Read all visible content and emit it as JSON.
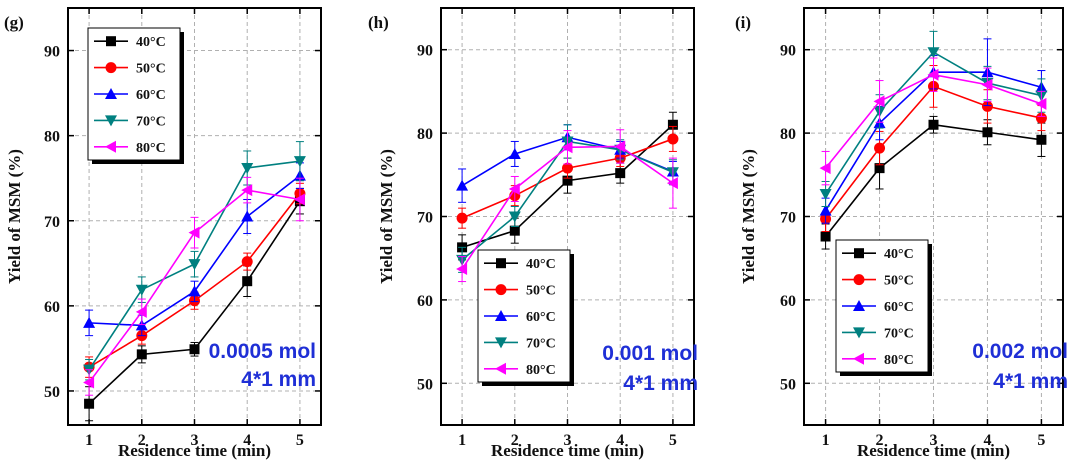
{
  "chart_data": [
    {
      "type": "line",
      "panel": "(g)",
      "xlabel": "Residence time (min)",
      "ylabel": "Yield of MSM (%)",
      "x": [
        1,
        2,
        3,
        4,
        5
      ],
      "xticks": [
        "1",
        "2",
        "3",
        "4",
        "5"
      ],
      "yticks": [
        "50",
        "60",
        "70",
        "80",
        "90"
      ],
      "xlim": [
        0.6,
        5.4
      ],
      "ylim": [
        46,
        95
      ],
      "legend_position": "top-left",
      "annotation": [
        "0.0005 mol",
        "4*1 mm"
      ],
      "series": [
        {
          "name": "40°C",
          "color": "#000000",
          "marker": "square",
          "values": [
            48.5,
            54.3,
            54.9,
            62.9,
            72.3
          ],
          "errors": [
            2.0,
            1.0,
            0.8,
            1.8,
            1.5
          ]
        },
        {
          "name": "50°C",
          "color": "#ff0000",
          "marker": "circle",
          "values": [
            52.8,
            56.5,
            60.6,
            65.2,
            73.2
          ],
          "errors": [
            1.2,
            1.0,
            1.0,
            1.0,
            1.2
          ]
        },
        {
          "name": "60°C",
          "color": "#0000ff",
          "marker": "triangle-up",
          "values": [
            58.0,
            57.7,
            61.7,
            70.5,
            75.3
          ],
          "errors": [
            1.5,
            1.2,
            1.2,
            2.0,
            1.5
          ]
        },
        {
          "name": "70°C",
          "color": "#008080",
          "marker": "triangle-down",
          "values": [
            52.5,
            61.9,
            64.9,
            76.2,
            77.0
          ],
          "errors": [
            1.2,
            1.5,
            1.5,
            2.0,
            2.3
          ]
        },
        {
          "name": "80°C",
          "color": "#ff00ff",
          "marker": "triangle-left",
          "values": [
            51.0,
            59.3,
            68.6,
            73.6,
            72.5
          ],
          "errors": [
            1.5,
            1.5,
            1.8,
            1.5,
            2.5
          ]
        }
      ]
    },
    {
      "type": "line",
      "panel": "(h)",
      "xlabel": "Residence time (min)",
      "ylabel": "Yield of MSM (%)",
      "x": [
        1,
        2,
        3,
        4,
        5
      ],
      "xticks": [
        "1",
        "2",
        "3",
        "4",
        "5"
      ],
      "yticks": [
        "50",
        "60",
        "70",
        "80",
        "90"
      ],
      "xlim": [
        0.6,
        5.4
      ],
      "ylim": [
        45,
        95
      ],
      "legend_position": "bottom-left",
      "annotation": [
        "0.001 mol",
        "4*1 mm"
      ],
      "series": [
        {
          "name": "40°C",
          "color": "#000000",
          "marker": "square",
          "values": [
            66.3,
            68.3,
            74.3,
            75.2,
            81.0
          ],
          "errors": [
            1.5,
            1.5,
            1.5,
            1.2,
            1.5
          ]
        },
        {
          "name": "50°C",
          "color": "#ff0000",
          "marker": "circle",
          "values": [
            69.8,
            72.5,
            75.8,
            77.0,
            79.3
          ],
          "errors": [
            1.2,
            1.2,
            1.2,
            1.0,
            1.5
          ]
        },
        {
          "name": "60°C",
          "color": "#0000ff",
          "marker": "triangle-up",
          "values": [
            73.7,
            77.5,
            79.5,
            78.0,
            75.4
          ],
          "errors": [
            2.0,
            1.5,
            1.5,
            1.0,
            1.2
          ]
        },
        {
          "name": "70°C",
          "color": "#008080",
          "marker": "triangle-down",
          "values": [
            64.8,
            70.0,
            79.0,
            78.0,
            75.3
          ],
          "errors": [
            1.5,
            1.2,
            2.0,
            1.2,
            1.5
          ]
        },
        {
          "name": "80°C",
          "color": "#ff00ff",
          "marker": "triangle-left",
          "values": [
            63.7,
            73.3,
            78.3,
            78.4,
            74.0
          ],
          "errors": [
            1.5,
            1.5,
            2.0,
            2.0,
            3.0
          ]
        }
      ]
    },
    {
      "type": "line",
      "panel": "(i)",
      "xlabel": "Residence time (min)",
      "ylabel": "Yield of MSM (%)",
      "x": [
        1,
        2,
        3,
        4,
        5
      ],
      "xticks": [
        "1",
        "2",
        "3",
        "4",
        "5"
      ],
      "yticks": [
        "50",
        "60",
        "70",
        "80",
        "90"
      ],
      "xlim": [
        0.6,
        5.4
      ],
      "ylim": [
        45,
        95
      ],
      "legend_position": "bottom-left",
      "annotation": [
        "0.002 mol",
        "4*1 mm"
      ],
      "series": [
        {
          "name": "40°C",
          "color": "#000000",
          "marker": "square",
          "values": [
            67.6,
            75.8,
            81.0,
            80.1,
            79.2
          ],
          "errors": [
            1.5,
            2.5,
            1.0,
            1.5,
            2.0
          ]
        },
        {
          "name": "50°C",
          "color": "#ff0000",
          "marker": "circle",
          "values": [
            69.7,
            78.2,
            85.6,
            83.2,
            81.8
          ],
          "errors": [
            1.5,
            2.0,
            2.5,
            2.0,
            1.5
          ]
        },
        {
          "name": "60°C",
          "color": "#0000ff",
          "marker": "triangle-up",
          "values": [
            70.7,
            81.2,
            87.3,
            87.3,
            85.5
          ],
          "errors": [
            1.5,
            2.0,
            2.0,
            4.0,
            2.0
          ]
        },
        {
          "name": "70°C",
          "color": "#008080",
          "marker": "triangle-down",
          "values": [
            72.7,
            82.6,
            89.7,
            86.0,
            84.5
          ],
          "errors": [
            1.5,
            2.0,
            2.5,
            2.0,
            2.0
          ]
        },
        {
          "name": "80°C",
          "color": "#ff00ff",
          "marker": "triangle-left",
          "values": [
            75.8,
            83.8,
            87.0,
            85.8,
            83.5
          ],
          "errors": [
            2.0,
            2.5,
            2.0,
            2.0,
            1.5
          ]
        }
      ]
    }
  ]
}
